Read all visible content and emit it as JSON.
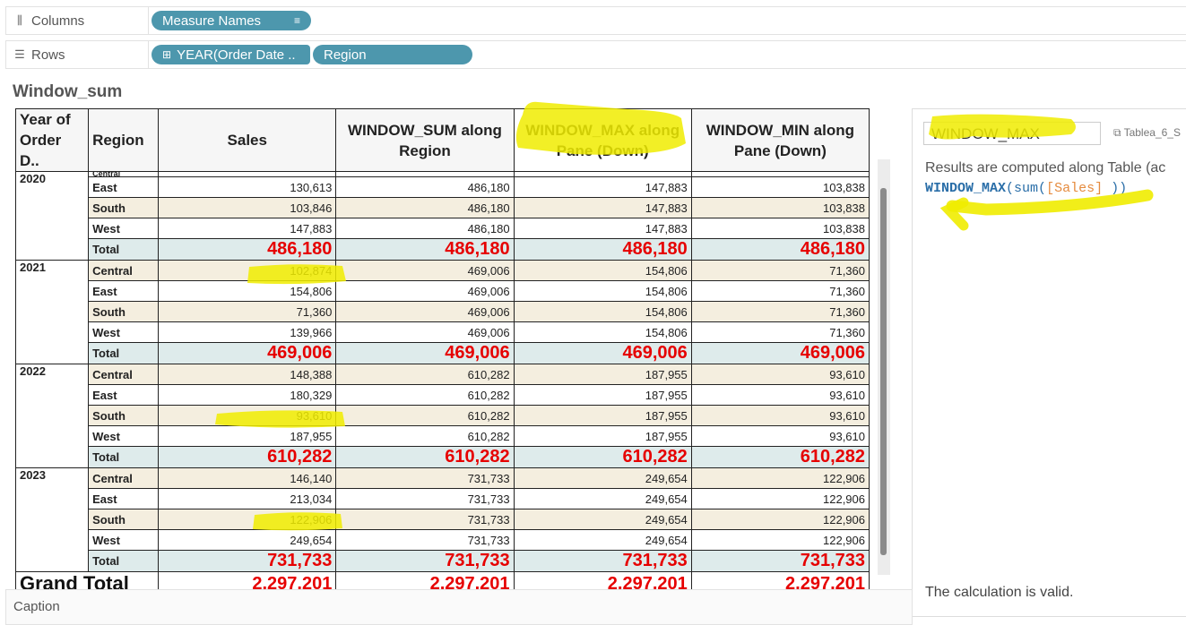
{
  "shelves": {
    "columns": {
      "label": "Columns",
      "icon": "columns-icon",
      "pills": [
        {
          "label": "Measure Names",
          "icon": "sort-icon"
        }
      ]
    },
    "rows": {
      "label": "Rows",
      "icon": "rows-icon",
      "pills": [
        {
          "label": "YEAR(Order Date ..",
          "icon": "expand-icon"
        },
        {
          "label": "Region"
        }
      ]
    }
  },
  "sheet": {
    "title": "Window_sum",
    "headers": {
      "year": "Year of Order D..",
      "region": "Region",
      "sales": "Sales",
      "window_sum": "WINDOW_SUM along Region",
      "window_max": "WINDOW_MAX along Pane (Down)",
      "window_min": "WINDOW_MIN along Pane (Down)"
    },
    "cut_region": "Central",
    "groups": [
      {
        "year": "2020",
        "rows": [
          {
            "region": "East",
            "sales": "130,613",
            "wsum": "486,180",
            "wmax": "147,883",
            "wmin": "103,838"
          },
          {
            "region": "South",
            "sales": "103,846",
            "wsum": "486,180",
            "wmax": "147,883",
            "wmin": "103,838"
          },
          {
            "region": "West",
            "sales": "147,883",
            "wsum": "486,180",
            "wmax": "147,883",
            "wmin": "103,838"
          }
        ],
        "total": {
          "label": "Total",
          "sales": "486,180",
          "wsum": "486,180",
          "wmax": "486,180",
          "wmin": "486,180"
        }
      },
      {
        "year": "2021",
        "rows": [
          {
            "region": "Central",
            "sales": "102,874",
            "wsum": "469,006",
            "wmax": "154,806",
            "wmin": "71,360"
          },
          {
            "region": "East",
            "sales": "154,806",
            "wsum": "469,006",
            "wmax": "154,806",
            "wmin": "71,360"
          },
          {
            "region": "South",
            "sales": "71,360",
            "wsum": "469,006",
            "wmax": "154,806",
            "wmin": "71,360"
          },
          {
            "region": "West",
            "sales": "139,966",
            "wsum": "469,006",
            "wmax": "154,806",
            "wmin": "71,360"
          }
        ],
        "total": {
          "label": "Total",
          "sales": "469,006",
          "wsum": "469,006",
          "wmax": "469,006",
          "wmin": "469,006"
        }
      },
      {
        "year": "2022",
        "rows": [
          {
            "region": "Central",
            "sales": "148,388",
            "wsum": "610,282",
            "wmax": "187,955",
            "wmin": "93,610"
          },
          {
            "region": "East",
            "sales": "180,329",
            "wsum": "610,282",
            "wmax": "187,955",
            "wmin": "93,610"
          },
          {
            "region": "South",
            "sales": "93,610",
            "wsum": "610,282",
            "wmax": "187,955",
            "wmin": "93,610"
          },
          {
            "region": "West",
            "sales": "187,955",
            "wsum": "610,282",
            "wmax": "187,955",
            "wmin": "93,610"
          }
        ],
        "total": {
          "label": "Total",
          "sales": "610,282",
          "wsum": "610,282",
          "wmax": "610,282",
          "wmin": "610,282"
        }
      },
      {
        "year": "2023",
        "rows": [
          {
            "region": "Central",
            "sales": "146,140",
            "wsum": "731,733",
            "wmax": "249,654",
            "wmin": "122,906"
          },
          {
            "region": "East",
            "sales": "213,034",
            "wsum": "731,733",
            "wmax": "249,654",
            "wmin": "122,906"
          },
          {
            "region": "South",
            "sales": "122,906",
            "wsum": "731,733",
            "wmax": "249,654",
            "wmin": "122,906"
          },
          {
            "region": "West",
            "sales": "249,654",
            "wsum": "731,733",
            "wmax": "249,654",
            "wmin": "122,906"
          }
        ],
        "total": {
          "label": "Total",
          "sales": "731,733",
          "wsum": "731,733",
          "wmax": "731,733",
          "wmin": "731,733"
        }
      }
    ],
    "grand_total": {
      "label": "Grand Total",
      "sales": "2,297,201",
      "wsum": "2,297,201",
      "wmax": "2,297,201",
      "wmin": "2,297,201"
    }
  },
  "calc_editor": {
    "name": "WINDOW_MAX",
    "datasource": "Tablea_6_S",
    "info": "Results are computed along Table (ac",
    "formula": {
      "fn": "WINDOW_MAX",
      "open": "(",
      "agg": "sum",
      "agg_open": "(",
      "field": "[Sales]",
      "close": " ))"
    },
    "status": "The calculation is valid."
  },
  "caption": {
    "label": "Caption"
  },
  "colors": {
    "pill": "#4d97ad",
    "total_text": "#e60000",
    "band": "#f4eedf",
    "total_band": "#deebeb",
    "highlighter": "#f0ec00"
  }
}
